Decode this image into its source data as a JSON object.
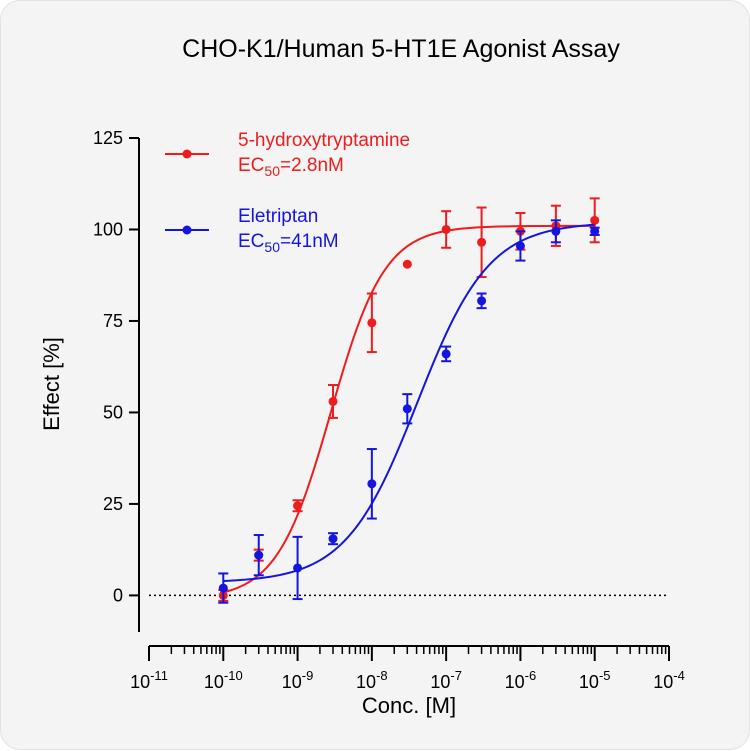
{
  "chart_data": {
    "type": "scatter",
    "title": "CHO-K1/Human 5-HT1E Agonist Assay",
    "xlabel": "Conc. [M]",
    "ylabel": "Effect  [%]",
    "x_scale": "log",
    "xlim": [
      1e-11,
      0.0001
    ],
    "ylim": [
      -10,
      125
    ],
    "y_ticks": [
      "0",
      "25",
      "50",
      "75",
      "100",
      "125"
    ],
    "x_tick_bases": [
      "10",
      "10",
      "10",
      "10",
      "10",
      "10",
      "10",
      "10"
    ],
    "x_tick_exponents": [
      "-11",
      "-10",
      "-9",
      "-8",
      "-7",
      "-6",
      "-5",
      "-4"
    ],
    "legend_position": "top-left",
    "baseline": 0,
    "series": [
      {
        "name": "5-hydroxytryptamine",
        "ec_text": [
          "EC",
          "50",
          "=2.8nM"
        ],
        "color": "#ee1c1c",
        "x": [
          1e-10,
          3e-10,
          1e-09,
          3e-09,
          1e-08,
          3e-08,
          1e-07,
          3e-07,
          1e-06,
          3e-06,
          1e-05
        ],
        "y": [
          0,
          11,
          24.5,
          53,
          74.5,
          90.5,
          100,
          96.5,
          99.5,
          101,
          102.5
        ],
        "error": [
          1.5,
          1.5,
          1.5,
          4.5,
          8,
          0,
          5,
          9.5,
          5,
          5.5,
          6
        ],
        "fit": {
          "bottom": -1,
          "top": 101,
          "ec50": 2.8e-09,
          "hill": 1.2
        }
      },
      {
        "name": "Eletriptan",
        "ec_text": [
          "EC",
          "50",
          "=41nM"
        ],
        "color": "#1515e0",
        "x": [
          1e-10,
          3e-10,
          1e-09,
          3e-09,
          1e-08,
          3e-08,
          1e-07,
          3e-07,
          1e-06,
          3e-06,
          1e-05
        ],
        "y": [
          2,
          11,
          7.5,
          15.5,
          30.5,
          51,
          66,
          80.5,
          95.5,
          99.5,
          99.5
        ],
        "error": [
          4,
          5.5,
          8.5,
          1.5,
          9.5,
          4,
          2,
          2,
          4,
          3,
          1
        ],
        "fit": {
          "bottom": 3.5,
          "top": 102,
          "ec50": 4.1e-08,
          "hill": 0.9
        }
      }
    ]
  }
}
